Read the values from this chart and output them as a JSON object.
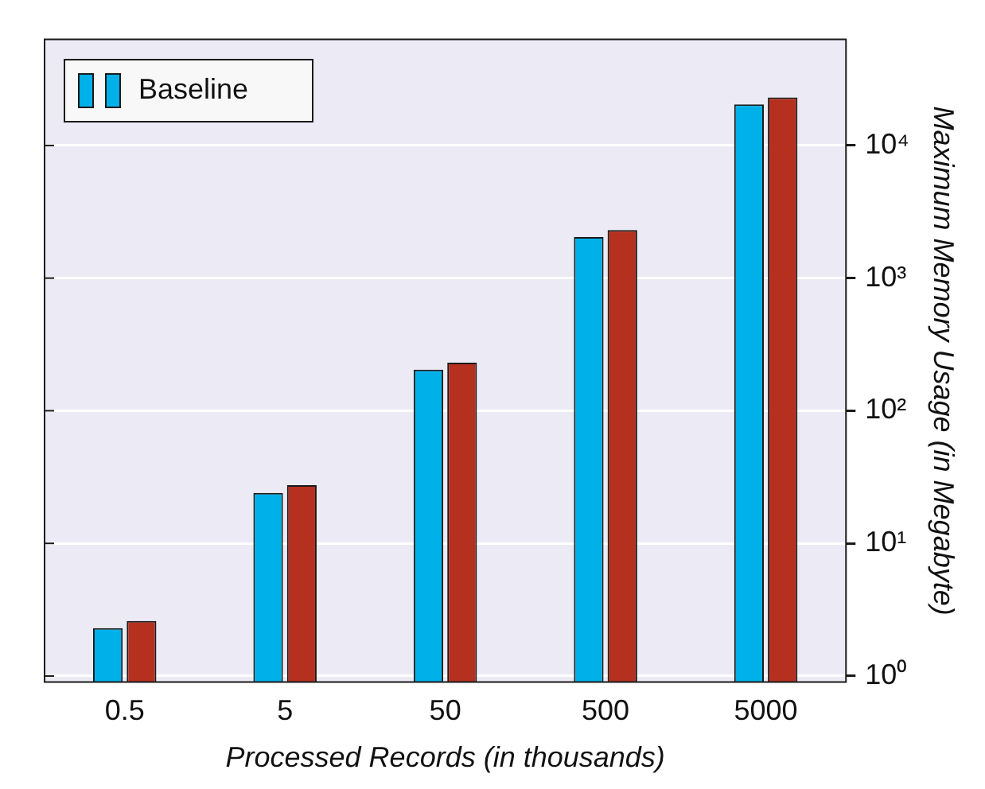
{
  "chart_data": {
    "type": "bar",
    "xlabel": "Processed Records (in thousands)",
    "ylabel": "Maximum Memory Usage (in Megabyte)",
    "categories": [
      "0.5",
      "5",
      "50",
      "500",
      "5000"
    ],
    "series": [
      {
        "name": "Baseline",
        "color": "#00b0e8",
        "values": [
          2.3,
          24,
          204,
          2040,
          20400
        ]
      },
      {
        "color": "#b5301f",
        "values": [
          2.6,
          27.5,
          230,
          2300,
          23000
        ]
      }
    ],
    "log": "y",
    "ylim": [
      0.9,
      63000
    ],
    "yticks": [
      {
        "value": 1,
        "label": "10⁰"
      },
      {
        "value": 10,
        "label": "10¹"
      },
      {
        "value": 100,
        "label": "10²"
      },
      {
        "value": 1000,
        "label": "10³"
      },
      {
        "value": 10000,
        "label": "10⁴"
      }
    ],
    "grid": "y",
    "legend": "top left"
  }
}
